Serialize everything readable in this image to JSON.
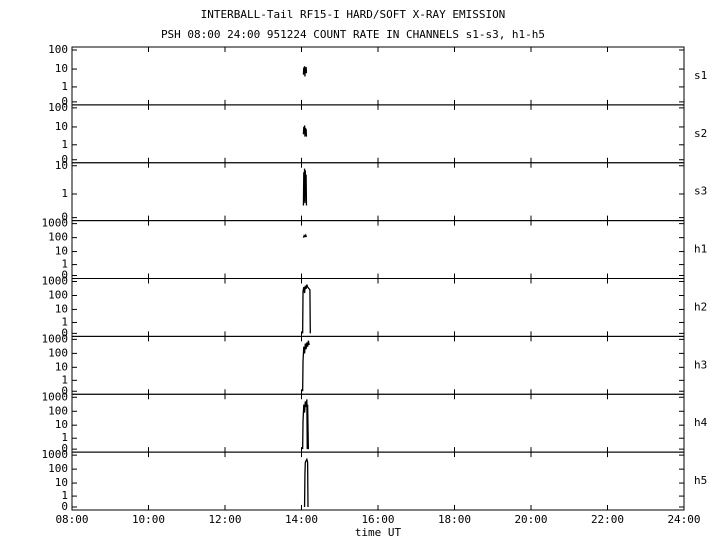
{
  "chart_data": {
    "type": "line",
    "title": "INTERBALL-Tail RF15-I HARD/SOFT X-RAY EMISSION",
    "subtitle": "PSH 08:00 24:00 951224  COUNT RATE IN CHANNELS s1-s3, h1-h5",
    "xlabel": "time UT",
    "xlim": [
      8,
      24
    ],
    "xticks": [
      {
        "value": 8,
        "label": "08:00"
      },
      {
        "value": 10,
        "label": "10:00"
      },
      {
        "value": 12,
        "label": "12:00"
      },
      {
        "value": 14,
        "label": "14:00"
      },
      {
        "value": 16,
        "label": "16:00"
      },
      {
        "value": 18,
        "label": "18:00"
      },
      {
        "value": 20,
        "label": "20:00"
      },
      {
        "value": 22,
        "label": "22:00"
      },
      {
        "value": 24,
        "label": "24:00"
      }
    ],
    "color": "#000000",
    "series": [
      {
        "name": "s1",
        "ylim": [
          0,
          100
        ],
        "yticks": [
          0,
          1,
          10,
          100
        ],
        "x": [
          14.05,
          14.06,
          14.07,
          14.08,
          14.09,
          14.1,
          14.11,
          14.12,
          14.13
        ],
        "values": [
          5,
          12,
          6,
          14,
          4,
          11,
          7,
          13,
          6
        ]
      },
      {
        "name": "s2",
        "ylim": [
          0,
          100
        ],
        "yticks": [
          0,
          1,
          10,
          100
        ],
        "x": [
          14.05,
          14.06,
          14.07,
          14.08,
          14.09,
          14.1,
          14.11,
          14.12,
          14.13
        ],
        "values": [
          4,
          10,
          5,
          12,
          3,
          9,
          4,
          8,
          3
        ]
      },
      {
        "name": "s3",
        "ylim": [
          0,
          10
        ],
        "yticks": [
          0,
          1,
          10
        ],
        "x": [
          14.05,
          14.06,
          14.07,
          14.08,
          14.09,
          14.1,
          14.11,
          14.12,
          14.13
        ],
        "values": [
          0.3,
          6,
          0.5,
          8,
          0.4,
          7,
          1,
          5,
          0.3
        ]
      },
      {
        "name": "h1",
        "ylim": [
          0,
          1000
        ],
        "yticks": [
          0,
          1,
          10,
          100,
          1000
        ],
        "x": [
          14.05,
          14.07,
          14.09,
          14.11,
          14.13
        ],
        "values": [
          100,
          140,
          120,
          150,
          110
        ]
      },
      {
        "name": "h2",
        "ylim": [
          0,
          1000
        ],
        "yticks": [
          0,
          1,
          10,
          100,
          1000
        ],
        "x": [
          14.03,
          14.04,
          14.06,
          14.08,
          14.1,
          14.12,
          14.14,
          14.16,
          14.18,
          14.2,
          14.22,
          14.23
        ],
        "values": [
          0,
          200,
          400,
          150,
          500,
          300,
          600,
          400,
          350,
          300,
          250,
          0
        ]
      },
      {
        "name": "h3",
        "ylim": [
          0,
          1000
        ],
        "yticks": [
          0,
          1,
          10,
          100,
          1000
        ],
        "x": [
          14.03,
          14.04,
          14.06,
          14.08,
          14.1,
          14.12,
          14.14,
          14.16,
          14.18,
          14.2
        ],
        "values": [
          0,
          30,
          300,
          100,
          500,
          200,
          600,
          300,
          800,
          400
        ]
      },
      {
        "name": "h4",
        "ylim": [
          0,
          1000
        ],
        "yticks": [
          0,
          1,
          10,
          100,
          1000
        ],
        "x": [
          14.03,
          14.04,
          14.06,
          14.08,
          14.1,
          14.12,
          14.14,
          14.15,
          14.16,
          14.18
        ],
        "values": [
          0,
          20,
          300,
          80,
          500,
          200,
          700,
          0,
          300,
          0
        ]
      },
      {
        "name": "h5",
        "ylim": [
          0,
          1000
        ],
        "yticks": [
          0,
          1,
          10,
          100,
          1000
        ],
        "x": [
          14.08,
          14.09,
          14.1,
          14.12,
          14.14,
          14.16,
          14.17
        ],
        "values": [
          0,
          50,
          300,
          400,
          500,
          300,
          0
        ]
      }
    ]
  }
}
